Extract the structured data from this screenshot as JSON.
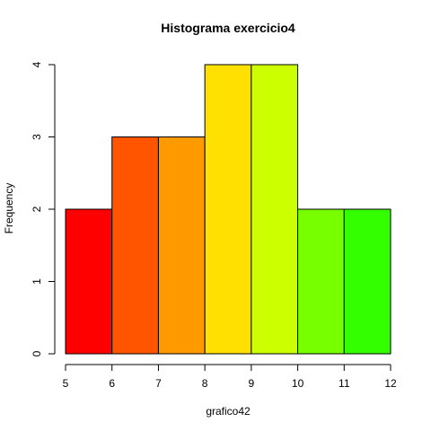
{
  "chart_data": {
    "type": "bar",
    "title": "Histograma exercicio4",
    "xlabel": "grafico42",
    "ylabel": "Frequency",
    "bins": [
      [
        5,
        6
      ],
      [
        6,
        7
      ],
      [
        7,
        8
      ],
      [
        8,
        9
      ],
      [
        9,
        10
      ],
      [
        10,
        11
      ],
      [
        11,
        12
      ]
    ],
    "values": [
      2,
      3,
      3,
      4,
      4,
      2,
      2
    ],
    "colors": [
      "#FF0000",
      "#FF5500",
      "#FF9900",
      "#FFE000",
      "#CCFF00",
      "#77FF00",
      "#33FF00"
    ],
    "xlim": [
      5,
      12
    ],
    "ylim": [
      0,
      4
    ],
    "x_ticks": [
      5,
      6,
      7,
      8,
      9,
      10,
      11,
      12
    ],
    "y_ticks": [
      0,
      1,
      2,
      3,
      4
    ],
    "grid": false,
    "legend": "none"
  }
}
